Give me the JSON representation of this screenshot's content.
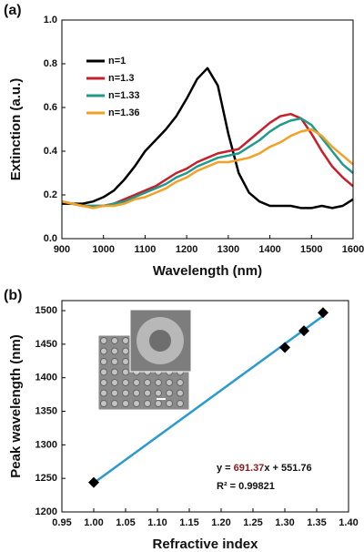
{
  "chart_data": [
    {
      "type": "line",
      "label": "(a)",
      "x_label": "Wavelength (nm)",
      "y_label": "Extinction (a.u.)",
      "x": [
        900,
        925,
        950,
        975,
        1000,
        1025,
        1050,
        1075,
        1100,
        1125,
        1150,
        1175,
        1200,
        1225,
        1250,
        1275,
        1300,
        1325,
        1350,
        1375,
        1400,
        1425,
        1450,
        1475,
        1500,
        1525,
        1550,
        1575,
        1600
      ],
      "series": [
        {
          "name": "n=1",
          "color": "#000000",
          "values": [
            0.16,
            0.16,
            0.16,
            0.17,
            0.19,
            0.22,
            0.27,
            0.33,
            0.4,
            0.45,
            0.5,
            0.56,
            0.64,
            0.73,
            0.78,
            0.7,
            0.48,
            0.3,
            0.21,
            0.17,
            0.15,
            0.15,
            0.15,
            0.14,
            0.14,
            0.15,
            0.14,
            0.15,
            0.18
          ]
        },
        {
          "name": "n=1.3",
          "color": "#c8202a",
          "values": [
            0.17,
            0.16,
            0.15,
            0.15,
            0.15,
            0.16,
            0.18,
            0.2,
            0.22,
            0.24,
            0.27,
            0.3,
            0.32,
            0.35,
            0.37,
            0.39,
            0.4,
            0.41,
            0.45,
            0.49,
            0.53,
            0.56,
            0.57,
            0.55,
            0.48,
            0.4,
            0.33,
            0.28,
            0.24
          ]
        },
        {
          "name": "n=1.33",
          "color": "#1f9a8c",
          "values": [
            0.17,
            0.16,
            0.15,
            0.15,
            0.15,
            0.16,
            0.17,
            0.19,
            0.21,
            0.23,
            0.25,
            0.28,
            0.3,
            0.33,
            0.35,
            0.37,
            0.38,
            0.39,
            0.42,
            0.45,
            0.49,
            0.52,
            0.54,
            0.55,
            0.52,
            0.46,
            0.4,
            0.34,
            0.3
          ]
        },
        {
          "name": "n=1.36",
          "color": "#f4a024",
          "values": [
            0.17,
            0.16,
            0.15,
            0.14,
            0.15,
            0.15,
            0.16,
            0.18,
            0.19,
            0.21,
            0.23,
            0.26,
            0.28,
            0.31,
            0.33,
            0.35,
            0.35,
            0.36,
            0.37,
            0.39,
            0.42,
            0.44,
            0.47,
            0.49,
            0.5,
            0.47,
            0.42,
            0.38,
            0.34
          ]
        }
      ],
      "xlim": [
        900,
        1600
      ],
      "xticks": [
        900,
        1000,
        1100,
        1200,
        1300,
        1400,
        1500,
        1600
      ],
      "ylim": [
        0,
        1
      ],
      "yticks": [
        {
          "value": 0,
          "label": "0.0"
        },
        0.2,
        0.4,
        0.6,
        0.8,
        {
          "value": 1,
          "label": "1.0"
        }
      ],
      "legend": "upper left"
    },
    {
      "type": "scatter",
      "label": "(b)",
      "x_label": "Refractive index",
      "y_label": "Peak wavelength (nm)",
      "x": [
        1,
        1.3,
        1.33,
        1.36
      ],
      "values": [
        1244,
        1445,
        1470,
        1497
      ],
      "color": "#000000",
      "fit_color": "#2a9ad0",
      "equation": {
        "prefix": "y = ",
        "slope": 691.37,
        "middle": "x + ",
        "intercept": 551.76,
        "slope_color": "#8b1a1a"
      },
      "r_squared": "R² = 0.99821",
      "xlim": [
        0.95,
        1.4
      ],
      "xticks": [
        0.95,
        {
          "value": 1,
          "label": "1.00"
        },
        1.05,
        {
          "value": 1.1,
          "label": "1.10"
        },
        1.15,
        {
          "value": 1.2,
          "label": "1.20"
        },
        1.25,
        {
          "value": 1.3,
          "label": "1.30"
        },
        1.35,
        {
          "value": 1.4,
          "label": "1.40"
        }
      ],
      "ylim": [
        1200,
        1515
      ],
      "yticks": [
        1200,
        1250,
        1300,
        1350,
        1400,
        1450,
        1500
      ]
    }
  ]
}
